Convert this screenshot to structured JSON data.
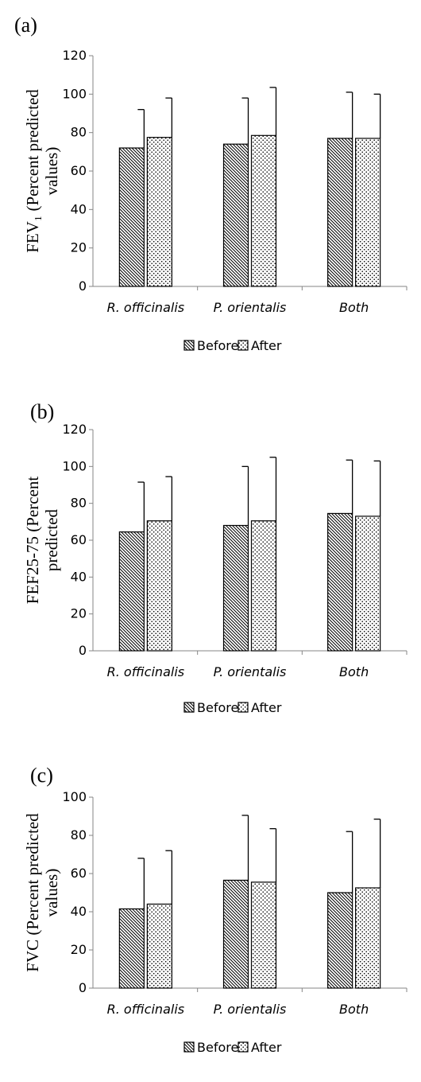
{
  "chart_data": [
    {
      "type": "bar",
      "panel": "(a)",
      "ylabel_lines": [
        "FEV₁ (Percent predicted",
        "values)"
      ],
      "tick_labels": [
        "0",
        "20",
        "40",
        "60",
        "80",
        "100",
        "120"
      ],
      "categories": [
        "R. officinalis",
        "P. orientalis",
        "Both"
      ],
      "series": [
        {
          "name": "Before",
          "values": [
            72,
            74,
            77
          ],
          "errors": [
            20,
            24,
            24
          ]
        },
        {
          "name": "After",
          "values": [
            77.5,
            78.5,
            77
          ],
          "errors": [
            20.5,
            25,
            23
          ]
        }
      ],
      "ylim": [
        0,
        120
      ],
      "grid": false,
      "legend_position": "bottom"
    },
    {
      "type": "bar",
      "panel": "(b)",
      "ylabel_lines": [
        "FEF25-75 (Percent",
        "predicted"
      ],
      "tick_labels": [
        "0",
        "20",
        "40",
        "60",
        "80",
        "100",
        "120"
      ],
      "categories": [
        "R. officinalis",
        "P. orientalis",
        "Both"
      ],
      "series": [
        {
          "name": "Before",
          "values": [
            64.5,
            68,
            74.5
          ],
          "errors": [
            27,
            32,
            29
          ]
        },
        {
          "name": "After",
          "values": [
            70.5,
            70.5,
            73
          ],
          "errors": [
            24,
            34.5,
            30
          ]
        }
      ],
      "ylim": [
        0,
        120
      ],
      "grid": false,
      "legend_position": "bottom"
    },
    {
      "type": "bar",
      "panel": "(c)",
      "ylabel_lines": [
        "FVC (Percent predicted",
        "values)"
      ],
      "tick_labels": [
        "0",
        "20",
        "40",
        "60",
        "80",
        "100"
      ],
      "categories": [
        "R. officinalis",
        "P. orientalis",
        "Both"
      ],
      "series": [
        {
          "name": "Before",
          "values": [
            41.5,
            56.5,
            50
          ],
          "errors": [
            26.5,
            34,
            32
          ]
        },
        {
          "name": "After",
          "values": [
            44,
            55.5,
            52.5
          ],
          "errors": [
            28,
            28,
            36
          ]
        }
      ],
      "ylim": [
        0,
        100
      ],
      "grid": false,
      "legend_position": "bottom"
    }
  ],
  "colors": {
    "bar_fill": "#ffffff",
    "outline": "#000000",
    "axis": "#868686"
  }
}
